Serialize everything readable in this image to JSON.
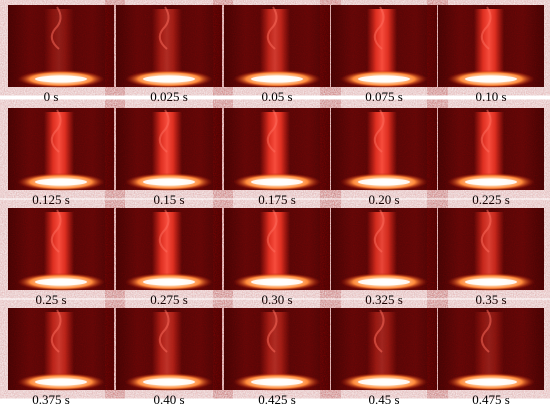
{
  "rows": [
    [
      "0 s",
      "0.025 s",
      "0.05 s",
      "0.075 s",
      "0.10 s"
    ],
    [
      "0.125 s",
      "0.15 s",
      "0.175 s",
      "0.20 s",
      "0.225 s"
    ],
    [
      "0.25 s",
      "0.275 s",
      "0.30 s",
      "0.325 s",
      "0.35 s"
    ],
    [
      "0.375 s",
      "0.40 s",
      "0.425 s",
      "0.45 s",
      "0.475 s"
    ]
  ]
}
